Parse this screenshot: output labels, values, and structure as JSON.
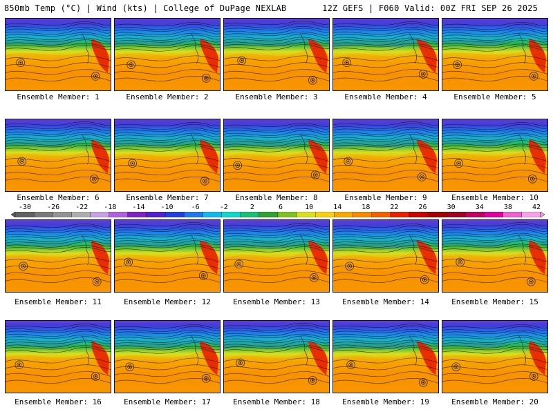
{
  "header": {
    "left": "850mb Temp (°C) | Wind (kts) | College of DuPage NEXLAB",
    "right": "12Z GEFS | F060 Valid: 00Z FRI SEP 26 2025"
  },
  "member_caption_prefix": "Ensemble Member: ",
  "members": [
    {
      "label": "Ensemble Member: 1"
    },
    {
      "label": "Ensemble Member: 2"
    },
    {
      "label": "Ensemble Member: 3"
    },
    {
      "label": "Ensemble Member: 4"
    },
    {
      "label": "Ensemble Member: 5"
    },
    {
      "label": "Ensemble Member: 6"
    },
    {
      "label": "Ensemble Member: 7"
    },
    {
      "label": "Ensemble Member: 8"
    },
    {
      "label": "Ensemble Member: 9"
    },
    {
      "label": "Ensemble Member: 10"
    },
    {
      "label": "Ensemble Member: 11"
    },
    {
      "label": "Ensemble Member: 12"
    },
    {
      "label": "Ensemble Member: 13"
    },
    {
      "label": "Ensemble Member: 14"
    },
    {
      "label": "Ensemble Member: 15"
    },
    {
      "label": "Ensemble Member: 16"
    },
    {
      "label": "Ensemble Member: 17"
    },
    {
      "label": "Ensemble Member: 18"
    },
    {
      "label": "Ensemble Member: 19"
    },
    {
      "label": "Ensemble Member: 20"
    }
  ],
  "colorbar": {
    "ticks": [
      "-30",
      "-26",
      "-22",
      "-18",
      "-14",
      "-10",
      "-6",
      "-2",
      "2",
      "6",
      "10",
      "14",
      "18",
      "22",
      "26",
      "30",
      "34",
      "38",
      "42"
    ],
    "colors": [
      "#606060",
      "#7a7a7a",
      "#939393",
      "#aeaeae",
      "#c8a0e8",
      "#b060e0",
      "#8020c8",
      "#5020d0",
      "#2040e0",
      "#2078f0",
      "#10b8f0",
      "#10d8c8",
      "#18c070",
      "#30a030",
      "#80c020",
      "#d8e020",
      "#f8d010",
      "#f8a800",
      "#f88800",
      "#f06000",
      "#e82000",
      "#c80000",
      "#a00000",
      "#a00020",
      "#c00060",
      "#e000a0",
      "#f060d0",
      "#f8a0e8"
    ]
  },
  "map_colors": {
    "polar": "#8020c8",
    "cold": "#2078f0",
    "cool": "#10d0c0",
    "mild": "#30b040",
    "warm": "#d8e020",
    "hot": "#f8a800",
    "subtropic": "#f88800",
    "heat": "#e82000"
  }
}
